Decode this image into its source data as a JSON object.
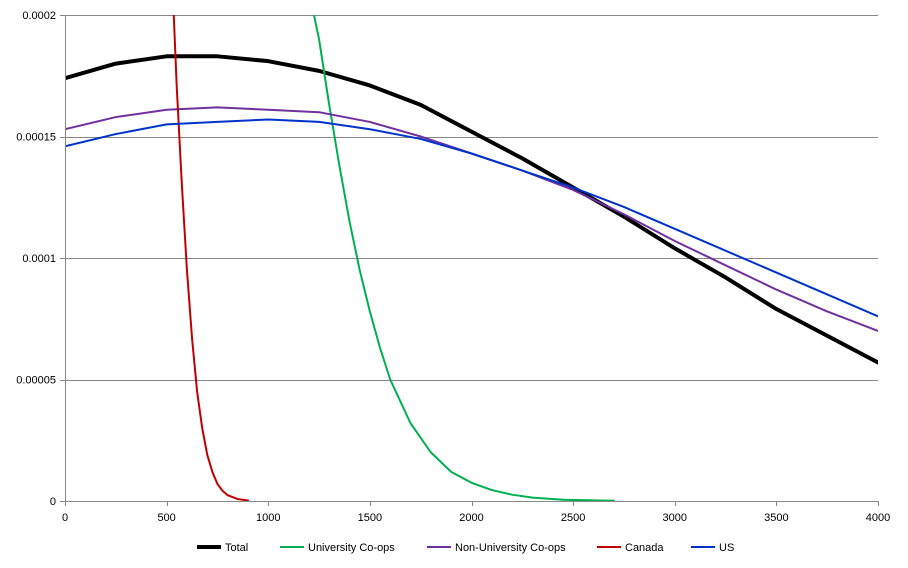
{
  "chart_data": {
    "type": "line",
    "title": "",
    "xlabel": "",
    "ylabel": "",
    "xlim": [
      0,
      4000
    ],
    "ylim": [
      0,
      0.0002
    ],
    "x_ticks": [
      0,
      500,
      1000,
      1500,
      2000,
      2500,
      3000,
      3500,
      4000
    ],
    "x_tick_labels": [
      "0",
      "500",
      "1000",
      "1500",
      "2000",
      "2500",
      "3000",
      "3500",
      "4000"
    ],
    "y_ticks": [
      0,
      5e-05,
      0.0001,
      0.00015,
      0.0002
    ],
    "y_tick_labels": [
      "0",
      "0.00005",
      "0.0001",
      "0.00015",
      "0.0002"
    ],
    "grid": "horizontal",
    "legend_position": "bottom",
    "series": [
      {
        "name": "Total",
        "color": "#000000",
        "width": 4,
        "points": [
          [
            0,
            0.000174
          ],
          [
            250,
            0.00018
          ],
          [
            500,
            0.000183
          ],
          [
            750,
            0.000183
          ],
          [
            1000,
            0.000181
          ],
          [
            1250,
            0.000177
          ],
          [
            1500,
            0.000171
          ],
          [
            1750,
            0.000163
          ],
          [
            2000,
            0.000152
          ],
          [
            2250,
            0.000141
          ],
          [
            2500,
            0.000129
          ],
          [
            2750,
            0.000117
          ],
          [
            3000,
            0.000104
          ],
          [
            3250,
            9.2e-05
          ],
          [
            3500,
            7.9e-05
          ],
          [
            3750,
            6.8e-05
          ],
          [
            4000,
            5.7e-05
          ]
        ]
      },
      {
        "name": "University Co-ops",
        "color": "#00b050",
        "width": 2,
        "points": [
          [
            1225,
            0.0002
          ],
          [
            1250,
            0.00019
          ],
          [
            1300,
            0.000163
          ],
          [
            1350,
            0.000138
          ],
          [
            1400,
            0.000115
          ],
          [
            1450,
            9.5e-05
          ],
          [
            1500,
            7.8e-05
          ],
          [
            1550,
            6.3e-05
          ],
          [
            1600,
            5e-05
          ],
          [
            1700,
            3.2e-05
          ],
          [
            1800,
            2e-05
          ],
          [
            1900,
            1.2e-05
          ],
          [
            2000,
            7.5e-06
          ],
          [
            2100,
            4.5e-06
          ],
          [
            2200,
            2.6e-06
          ],
          [
            2300,
            1.4e-06
          ],
          [
            2450,
            5e-07
          ],
          [
            2700,
            1e-07
          ]
        ]
      },
      {
        "name": "Non-University Co-ops",
        "color": "#7030a0",
        "width": 2,
        "points": [
          [
            0,
            0.000153
          ],
          [
            250,
            0.000158
          ],
          [
            500,
            0.000161
          ],
          [
            750,
            0.000162
          ],
          [
            1000,
            0.000161
          ],
          [
            1250,
            0.00016
          ],
          [
            1500,
            0.000156
          ],
          [
            1750,
            0.00015
          ],
          [
            2000,
            0.000143
          ],
          [
            2250,
            0.000136
          ],
          [
            2500,
            0.000128
          ],
          [
            2750,
            0.000118
          ],
          [
            3000,
            0.000107
          ],
          [
            3250,
            9.7e-05
          ],
          [
            3500,
            8.7e-05
          ],
          [
            3750,
            7.8e-05
          ],
          [
            4000,
            7e-05
          ]
        ]
      },
      {
        "name": "Canada",
        "color": "#c00000",
        "width": 2,
        "points": [
          [
            535,
            0.0002
          ],
          [
            550,
            0.00017
          ],
          [
            575,
            0.00013
          ],
          [
            600,
            9.5e-05
          ],
          [
            625,
            6.7e-05
          ],
          [
            650,
            4.5e-05
          ],
          [
            675,
            3e-05
          ],
          [
            700,
            1.9e-05
          ],
          [
            725,
            1.2e-05
          ],
          [
            750,
            7e-06
          ],
          [
            775,
            4.2e-06
          ],
          [
            800,
            2.4e-06
          ],
          [
            850,
            8e-07
          ],
          [
            900,
            2e-07
          ]
        ]
      },
      {
        "name": "US",
        "color": "#0033cc",
        "width": 2,
        "points": [
          [
            0,
            0.000146
          ],
          [
            250,
            0.000151
          ],
          [
            500,
            0.000155
          ],
          [
            750,
            0.000156
          ],
          [
            1000,
            0.000157
          ],
          [
            1250,
            0.000156
          ],
          [
            1500,
            0.000153
          ],
          [
            1750,
            0.000149
          ],
          [
            2000,
            0.000143
          ],
          [
            2250,
            0.000136
          ],
          [
            2500,
            0.000129
          ],
          [
            2750,
            0.000121
          ],
          [
            3000,
            0.000112
          ],
          [
            3250,
            0.000103
          ],
          [
            3500,
            9.4e-05
          ],
          [
            3750,
            8.5e-05
          ],
          [
            4000,
            7.6e-05
          ]
        ]
      }
    ]
  }
}
